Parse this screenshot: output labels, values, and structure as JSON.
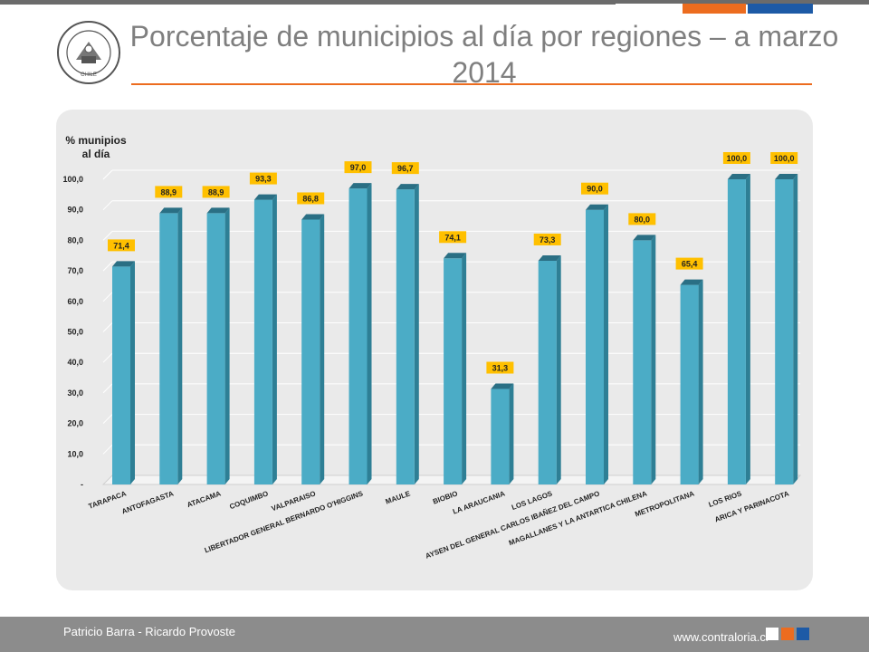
{
  "slide": {
    "title": "Porcentaje de municipios al día por regiones – a marzo 2014",
    "logo_text": "CONTRALORIA GENERAL DE LA REPUBLICA",
    "logo_country": "CHILE",
    "authors": "Patricio Barra - Ricardo Provoste",
    "url": "www.contraloria.cl"
  },
  "colors": {
    "accent_orange": "#ec6c1f",
    "accent_blue": "#1d5aa6",
    "bar_face": "#4bacc6",
    "label_fill": "#ffc000"
  },
  "chart_data": {
    "type": "bar",
    "ylabel": "% munipios al día",
    "ylim": [
      0,
      100
    ],
    "yticks": [
      "-",
      "10,0",
      "20,0",
      "30,0",
      "40,0",
      "50,0",
      "60,0",
      "70,0",
      "80,0",
      "90,0",
      "100,0"
    ],
    "grid": true,
    "categories": [
      "TARAPACA",
      "ANTOFAGASTA",
      "ATACAMA",
      "COQUIMBO",
      "VALPARAISO",
      "LIBERTADOR GENERAL BERNARDO O'HIGGINS",
      "MAULE",
      "BIOBIO",
      "LA ARAUCANIA",
      "LOS LAGOS",
      "AYSEN DEL GENERAL CARLOS IBAÑEZ DEL CAMPO",
      "MAGALLANES Y LA ANTARTICA CHILENA",
      "METROPOLITANA",
      "LOS RIOS",
      "ARICA Y PARINACOTA"
    ],
    "values": [
      71.4,
      88.9,
      88.9,
      93.3,
      86.8,
      97.0,
      96.7,
      74.1,
      31.3,
      73.3,
      90.0,
      80.0,
      65.4,
      100.0,
      100.0
    ],
    "value_labels": [
      "71,4",
      "88,9",
      "88,9",
      "93,3",
      "86,8",
      "97,0",
      "96,7",
      "74,1",
      "31,3",
      "73,3",
      "90,0",
      "80,0",
      "65,4",
      "100,0",
      "100,0"
    ]
  }
}
